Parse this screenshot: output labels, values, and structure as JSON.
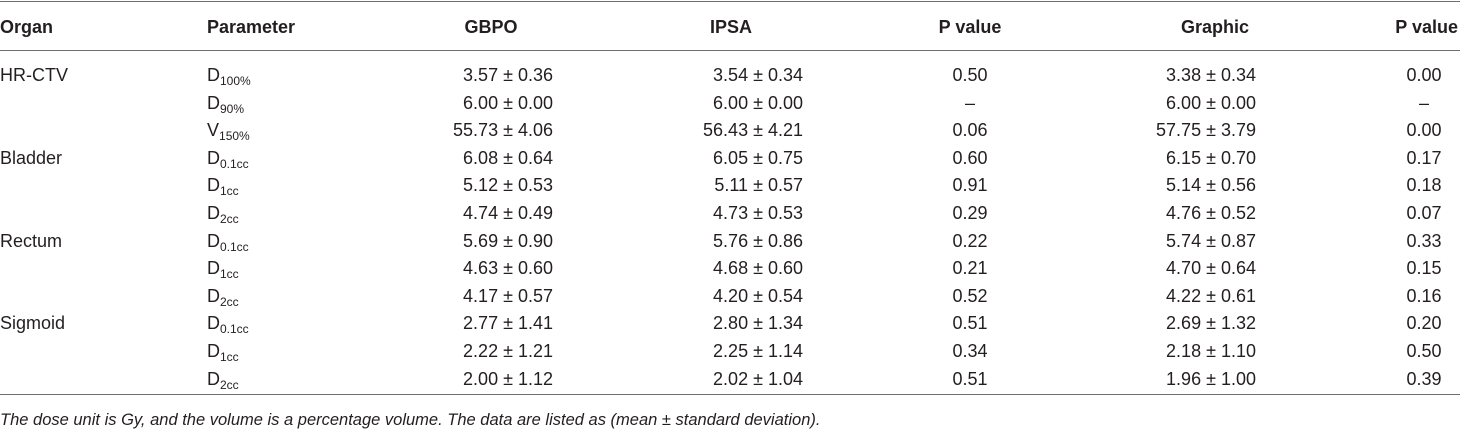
{
  "table": {
    "header": [
      "Organ",
      "Parameter",
      "GBPO",
      "IPSA",
      "P value",
      "Graphic",
      "P value"
    ],
    "groups": [
      {
        "organ": "HR-CTV",
        "rows": [
          {
            "parameter": {
              "base": "D",
              "sub": "100%"
            },
            "cells": [
              "3.57 ± 0.36",
              "3.54 ± 0.34",
              "0.50",
              "3.38 ± 0.34",
              "0.00"
            ]
          },
          {
            "parameter": {
              "base": "D",
              "sub": "90%"
            },
            "cells": [
              "6.00 ± 0.00",
              "6.00 ± 0.00",
              "–",
              "6.00 ± 0.00",
              "–"
            ]
          },
          {
            "parameter": {
              "base": "V",
              "sub": "150%"
            },
            "cells": [
              "55.73 ± 4.06",
              "56.43 ± 4.21",
              "0.06",
              "57.75 ± 3.79",
              "0.00"
            ]
          }
        ]
      },
      {
        "organ": "Bladder",
        "rows": [
          {
            "parameter": {
              "base": "D",
              "sub": "0.1cc"
            },
            "cells": [
              "6.08 ± 0.64",
              "6.05 ± 0.75",
              "0.60",
              "6.15 ± 0.70",
              "0.17"
            ]
          },
          {
            "parameter": {
              "base": "D",
              "sub": "1cc"
            },
            "cells": [
              "5.12 ± 0.53",
              "5.11 ± 0.57",
              "0.91",
              "5.14 ± 0.56",
              "0.18"
            ]
          },
          {
            "parameter": {
              "base": "D",
              "sub": "2cc"
            },
            "cells": [
              "4.74 ± 0.49",
              "4.73 ± 0.53",
              "0.29",
              "4.76 ± 0.52",
              "0.07"
            ]
          }
        ]
      },
      {
        "organ": "Rectum",
        "rows": [
          {
            "parameter": {
              "base": "D",
              "sub": "0.1cc"
            },
            "cells": [
              "5.69 ± 0.90",
              "5.76 ± 0.86",
              "0.22",
              "5.74 ± 0.87",
              "0.33"
            ]
          },
          {
            "parameter": {
              "base": "D",
              "sub": "1cc"
            },
            "cells": [
              "4.63 ± 0.60",
              "4.68 ± 0.60",
              "0.21",
              "4.70 ± 0.64",
              "0.15"
            ]
          },
          {
            "parameter": {
              "base": "D",
              "sub": "2cc"
            },
            "cells": [
              "4.17 ± 0.57",
              "4.20 ± 0.54",
              "0.52",
              "4.22 ± 0.61",
              "0.16"
            ]
          }
        ]
      },
      {
        "organ": "Sigmoid",
        "rows": [
          {
            "parameter": {
              "base": "D",
              "sub": "0.1cc"
            },
            "cells": [
              "2.77 ± 1.41",
              "2.80 ± 1.34",
              "0.51",
              "2.69 ± 1.32",
              "0.20"
            ]
          },
          {
            "parameter": {
              "base": "D",
              "sub": "1cc"
            },
            "cells": [
              "2.22 ± 1.21",
              "2.25 ± 1.14",
              "0.34",
              "2.18 ± 1.10",
              "0.50"
            ]
          },
          {
            "parameter": {
              "base": "D",
              "sub": "2cc"
            },
            "cells": [
              "2.00 ± 1.12",
              "2.02 ± 1.04",
              "0.51",
              "1.96 ± 1.00",
              "0.39"
            ]
          }
        ]
      }
    ]
  },
  "footnote": "The dose unit is Gy, and the volume is a percentage volume. The data are listed as (mean ± standard deviation)."
}
